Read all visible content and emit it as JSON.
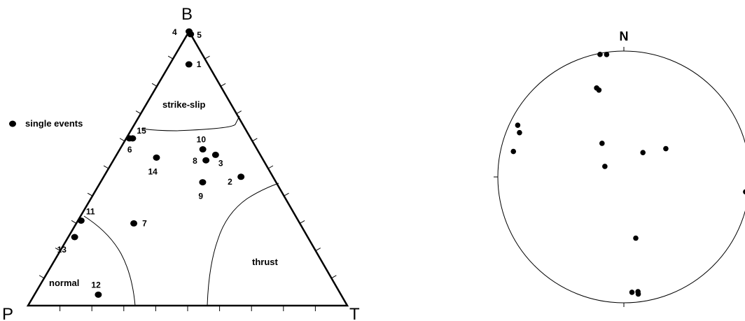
{
  "chart_data": [
    {
      "type": "scatter",
      "subtype": "ternary",
      "vertices": {
        "top": "B",
        "left": "P",
        "right": "T"
      },
      "regions": [
        {
          "label": "strike-slip"
        },
        {
          "label": "normal"
        },
        {
          "label": "thrust"
        }
      ],
      "legend": {
        "label": "single events",
        "placement": "left"
      },
      "points": [
        {
          "id": "1",
          "label": "1",
          "P": 0.06,
          "T": 0.06,
          "B": 0.88
        },
        {
          "id": "2",
          "label": "2",
          "P": 0.1,
          "T": 0.43,
          "B": 0.47
        },
        {
          "id": "3",
          "label": "3",
          "P": 0.14,
          "T": 0.31,
          "B": 0.55
        },
        {
          "id": "4",
          "label": "4",
          "P": 0.0,
          "T": 0.0,
          "B": 1.0
        },
        {
          "id": "5",
          "label": "5",
          "P": 0.0,
          "T": 0.01,
          "B": 0.99
        },
        {
          "id": "6",
          "label": "6",
          "P": 0.38,
          "T": 0.01,
          "B": 0.61
        },
        {
          "id": "7",
          "label": "7",
          "P": 0.52,
          "T": 0.18,
          "B": 0.3
        },
        {
          "id": "8",
          "label": "8",
          "P": 0.18,
          "T": 0.29,
          "B": 0.53
        },
        {
          "id": "9",
          "label": "9",
          "P": 0.23,
          "T": 0.32,
          "B": 0.45
        },
        {
          "id": "10",
          "label": "10",
          "P": 0.17,
          "T": 0.26,
          "B": 0.57
        },
        {
          "id": "11",
          "label": "11",
          "P": 0.68,
          "T": 0.01,
          "B": 0.31
        },
        {
          "id": "12",
          "label": "12",
          "P": 0.76,
          "T": 0.2,
          "B": 0.04
        },
        {
          "id": "13",
          "label": "13",
          "P": 0.73,
          "T": 0.02,
          "B": 0.25
        },
        {
          "id": "14",
          "label": "14",
          "P": 0.33,
          "T": 0.13,
          "B": 0.54
        },
        {
          "id": "15",
          "label": "15",
          "P": 0.37,
          "T": 0.02,
          "B": 0.61
        }
      ]
    },
    {
      "type": "scatter",
      "subtype": "stereonet",
      "north_label": "N",
      "points": [
        {
          "trend": 349,
          "plunge": 1
        },
        {
          "trend": 352,
          "plunge": 2
        },
        {
          "trend": 343,
          "plunge": 27
        },
        {
          "trend": 344,
          "plunge": 29
        },
        {
          "trend": 296,
          "plunge": 7
        },
        {
          "trend": 293,
          "plunge": 11
        },
        {
          "trend": 283,
          "plunge": 11
        },
        {
          "trend": 56,
          "plunge": 57
        },
        {
          "trend": 327,
          "plunge": 64
        },
        {
          "trend": 38,
          "plunge": 70
        },
        {
          "trend": 299,
          "plunge": 76
        },
        {
          "trend": 97,
          "plunge": 3
        },
        {
          "trend": 169,
          "plunge": 49
        },
        {
          "trend": 173,
          "plunge": 9
        },
        {
          "trend": 176,
          "plunge": 9
        },
        {
          "trend": 173,
          "plunge": 7
        }
      ]
    }
  ]
}
